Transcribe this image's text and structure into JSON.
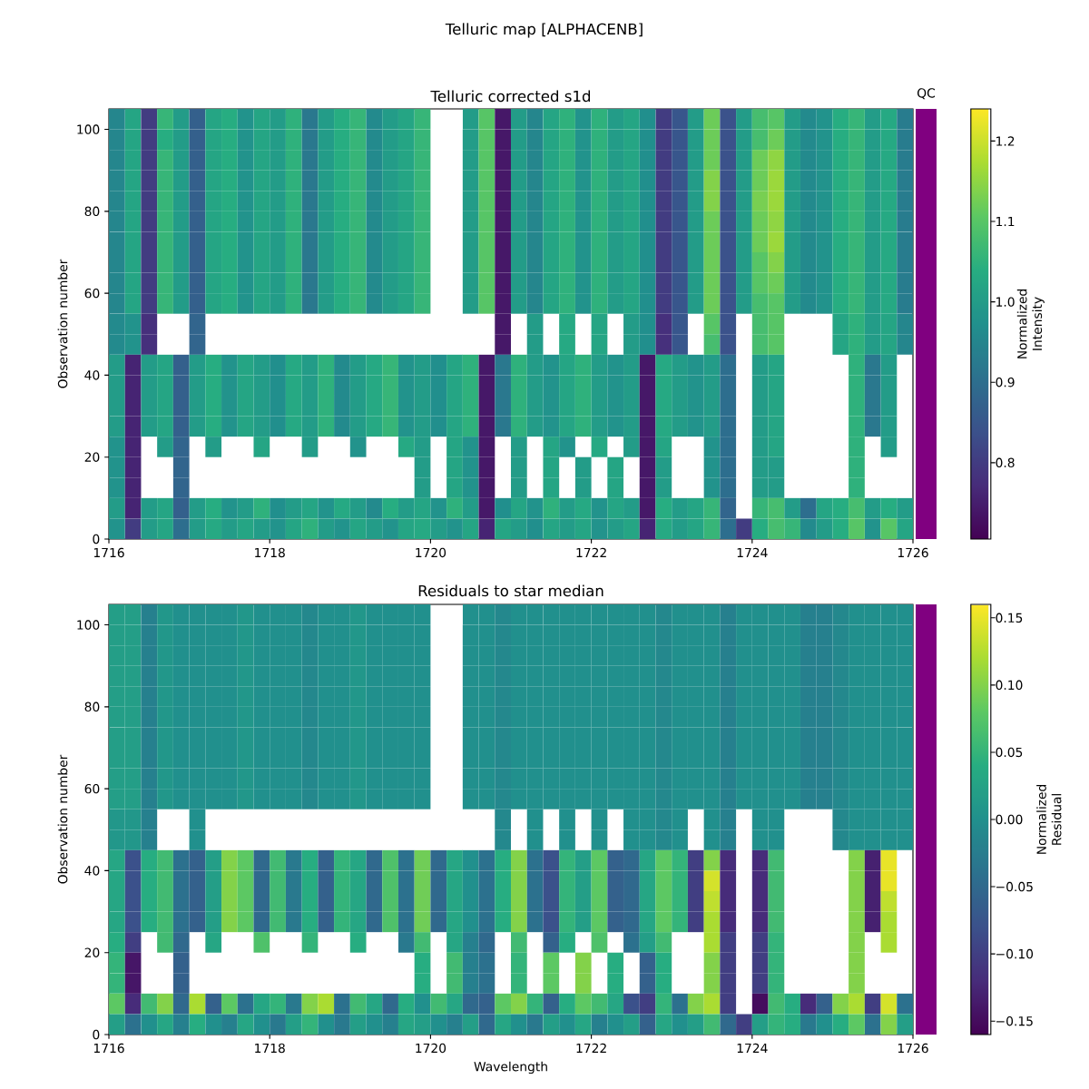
{
  "chart_data": [
    {
      "type": "other",
      "title": "Telluric map [ALPHACENB]"
    },
    {
      "type": "heatmap",
      "title": "Telluric corrected s1d",
      "ylabel": "Observation number",
      "clabel": "Normalized Intensity",
      "xlim": [
        1716,
        1726
      ],
      "xticks": [
        1716,
        1718,
        1720,
        1722,
        1724,
        1726
      ],
      "ylim": [
        0,
        105
      ],
      "yticks": [
        0,
        20,
        40,
        60,
        80,
        100
      ],
      "clim": [
        0.705,
        1.24
      ],
      "cticks": [
        0.8,
        0.9,
        {
          "value": 1.0,
          "label": "1.0"
        },
        1.1,
        1.2
      ],
      "cells": [
        [
          0.95,
          1.02,
          0.8,
          1.06,
          1.0,
          0.87,
          1.02,
          1.04,
          0.98,
          1.02,
          1.0,
          1.05,
          0.92,
          1.0,
          1.04,
          1.06,
          0.96,
          1.0,
          1.02,
          1.06,
          null,
          null,
          1.0,
          1.1,
          0.74,
          1.0,
          0.95,
          1.02,
          1.05,
          0.98,
          1.05,
          1.0,
          1.02,
          0.97,
          0.8,
          0.85,
          1.0,
          1.12,
          0.84,
          1.0,
          1.08,
          1.1,
          1.0,
          0.96,
          0.98,
          1.04,
          1.06,
          1.0,
          1.03,
          0.93
        ],
        [
          0.95,
          1.02,
          0.8,
          1.04,
          1.0,
          0.87,
          1.02,
          1.04,
          0.98,
          1.02,
          1.0,
          1.05,
          0.92,
          1.0,
          1.04,
          1.06,
          0.96,
          1.0,
          1.02,
          1.06,
          null,
          null,
          1.0,
          1.1,
          0.74,
          1.0,
          0.95,
          1.02,
          1.05,
          0.98,
          1.05,
          1.0,
          1.02,
          0.97,
          0.8,
          0.85,
          1.0,
          1.12,
          0.84,
          1.0,
          1.08,
          1.12,
          1.0,
          0.96,
          0.98,
          1.04,
          1.06,
          1.0,
          1.03,
          0.93
        ],
        [
          0.95,
          1.02,
          0.8,
          1.06,
          1.0,
          0.87,
          1.02,
          1.04,
          0.98,
          1.02,
          1.0,
          1.05,
          0.92,
          1.0,
          1.04,
          1.06,
          0.96,
          1.0,
          1.02,
          1.06,
          null,
          null,
          1.0,
          1.1,
          0.74,
          1.0,
          0.95,
          1.02,
          1.05,
          0.98,
          1.05,
          1.0,
          1.02,
          0.97,
          0.8,
          0.85,
          1.0,
          1.12,
          0.84,
          1.0,
          1.12,
          1.15,
          1.0,
          0.96,
          0.98,
          1.04,
          1.06,
          1.0,
          1.03,
          0.93
        ],
        [
          0.95,
          1.02,
          0.8,
          1.06,
          1.0,
          0.87,
          1.02,
          1.04,
          0.98,
          1.02,
          1.0,
          1.05,
          0.92,
          1.0,
          1.04,
          1.06,
          0.96,
          1.0,
          1.02,
          1.06,
          null,
          null,
          1.0,
          1.1,
          0.74,
          1.0,
          0.95,
          1.02,
          1.05,
          0.98,
          1.05,
          1.0,
          1.02,
          0.97,
          0.8,
          0.85,
          1.0,
          1.14,
          0.84,
          1.0,
          1.12,
          1.16,
          1.0,
          0.96,
          0.98,
          1.04,
          1.06,
          1.0,
          1.03,
          0.93
        ],
        [
          0.95,
          1.02,
          0.8,
          1.06,
          1.0,
          0.87,
          1.02,
          1.04,
          0.98,
          1.02,
          1.0,
          1.05,
          0.92,
          1.0,
          1.04,
          1.06,
          0.96,
          1.0,
          1.02,
          1.06,
          null,
          null,
          1.0,
          1.1,
          0.74,
          1.0,
          0.95,
          1.02,
          1.05,
          0.98,
          1.05,
          1.0,
          1.02,
          0.97,
          0.8,
          0.85,
          1.0,
          1.14,
          0.84,
          1.0,
          1.13,
          1.16,
          1.0,
          0.96,
          0.98,
          1.04,
          1.06,
          1.0,
          1.03,
          0.93
        ],
        [
          0.95,
          1.02,
          0.8,
          1.06,
          1.0,
          0.87,
          1.02,
          1.04,
          0.98,
          1.02,
          1.0,
          1.05,
          0.92,
          1.0,
          1.04,
          1.06,
          0.96,
          1.0,
          1.02,
          1.06,
          null,
          null,
          1.0,
          1.1,
          0.74,
          1.0,
          0.95,
          1.02,
          1.05,
          0.98,
          1.05,
          1.0,
          1.02,
          0.97,
          0.8,
          0.85,
          1.0,
          1.12,
          0.84,
          1.0,
          1.12,
          1.15,
          1.0,
          0.96,
          0.98,
          1.04,
          1.06,
          1.0,
          1.03,
          0.93
        ],
        [
          0.95,
          1.02,
          0.8,
          1.06,
          1.0,
          0.87,
          1.02,
          1.04,
          0.98,
          1.02,
          1.0,
          1.05,
          0.92,
          1.0,
          1.04,
          1.06,
          0.96,
          1.0,
          1.02,
          1.06,
          null,
          null,
          1.0,
          1.1,
          0.74,
          1.0,
          0.95,
          1.02,
          1.05,
          0.98,
          1.05,
          1.0,
          1.02,
          0.97,
          0.8,
          0.85,
          1.0,
          1.12,
          0.84,
          1.0,
          1.12,
          1.16,
          1.0,
          0.96,
          0.98,
          1.04,
          1.06,
          1.0,
          1.03,
          0.93
        ],
        [
          0.95,
          1.02,
          0.8,
          1.06,
          1.0,
          0.87,
          1.02,
          1.04,
          0.98,
          1.02,
          1.0,
          1.05,
          0.92,
          1.0,
          1.04,
          1.06,
          0.96,
          1.0,
          1.02,
          1.06,
          null,
          null,
          1.0,
          1.1,
          0.74,
          1.0,
          0.95,
          1.02,
          1.05,
          0.98,
          1.05,
          1.0,
          1.02,
          0.97,
          0.8,
          0.85,
          1.0,
          1.12,
          0.84,
          1.0,
          1.1,
          1.14,
          1.0,
          0.96,
          0.98,
          1.04,
          1.06,
          1.0,
          1.03,
          0.93
        ],
        [
          0.95,
          1.02,
          0.8,
          1.06,
          1.0,
          0.87,
          1.02,
          1.04,
          0.98,
          1.02,
          1.0,
          1.05,
          0.92,
          1.0,
          1.04,
          1.06,
          0.96,
          1.0,
          1.02,
          1.06,
          null,
          null,
          1.0,
          1.1,
          0.74,
          1.0,
          0.95,
          1.02,
          1.05,
          0.98,
          1.05,
          1.0,
          1.02,
          0.97,
          0.8,
          0.85,
          1.0,
          1.12,
          0.84,
          1.0,
          1.1,
          1.12,
          1.0,
          0.96,
          0.98,
          1.04,
          1.06,
          1.0,
          1.03,
          0.93
        ],
        [
          0.95,
          1.02,
          0.8,
          1.06,
          1.0,
          0.87,
          1.02,
          1.04,
          0.98,
          1.02,
          1.0,
          1.05,
          0.92,
          1.0,
          1.04,
          1.06,
          0.96,
          1.0,
          1.02,
          1.06,
          null,
          null,
          1.0,
          1.1,
          0.74,
          1.0,
          0.95,
          1.02,
          1.05,
          0.98,
          1.05,
          1.0,
          1.02,
          0.97,
          0.8,
          0.85,
          1.0,
          1.12,
          0.84,
          1.0,
          1.08,
          1.1,
          1.0,
          0.96,
          0.98,
          1.04,
          1.06,
          1.0,
          1.03,
          0.93
        ],
        [
          0.96,
          0.98,
          0.78,
          null,
          null,
          0.88,
          null,
          null,
          null,
          null,
          null,
          null,
          null,
          null,
          null,
          null,
          null,
          null,
          null,
          null,
          null,
          null,
          null,
          null,
          0.74,
          null,
          1.0,
          null,
          1.03,
          null,
          1.02,
          null,
          1.0,
          0.97,
          0.78,
          0.85,
          null,
          1.1,
          0.84,
          null,
          1.08,
          1.1,
          null,
          null,
          null,
          1.02,
          1.05,
          1.0,
          1.02,
          0.95
        ],
        [
          0.96,
          0.98,
          0.78,
          null,
          null,
          0.88,
          null,
          null,
          null,
          null,
          null,
          null,
          null,
          null,
          null,
          null,
          null,
          null,
          null,
          null,
          null,
          null,
          null,
          null,
          0.74,
          null,
          1.0,
          null,
          1.03,
          null,
          1.02,
          null,
          1.0,
          0.97,
          0.78,
          0.85,
          null,
          1.08,
          0.84,
          null,
          1.08,
          1.1,
          null,
          null,
          null,
          1.02,
          1.05,
          1.0,
          1.02,
          0.95
        ],
        [
          1.0,
          0.76,
          1.0,
          1.02,
          0.87,
          1.0,
          1.04,
          0.98,
          1.02,
          1.0,
          0.97,
          1.03,
          1.0,
          1.05,
          0.96,
          1.0,
          1.03,
          1.06,
          0.98,
          1.0,
          0.97,
          1.02,
          1.05,
          0.74,
          0.92,
          1.05,
          1.0,
          0.98,
          1.02,
          1.05,
          1.0,
          0.98,
          1.0,
          0.74,
          1.03,
          1.0,
          0.98,
          1.0,
          0.9,
          null,
          1.0,
          1.02,
          null,
          null,
          null,
          null,
          1.05,
          0.92,
          1.0,
          null
        ],
        [
          1.0,
          0.76,
          1.0,
          1.02,
          0.87,
          1.0,
          1.04,
          0.98,
          1.02,
          1.0,
          0.97,
          1.03,
          1.0,
          1.05,
          0.96,
          1.0,
          1.03,
          1.06,
          0.98,
          1.0,
          0.97,
          1.02,
          1.05,
          0.74,
          0.92,
          1.05,
          1.0,
          0.98,
          1.02,
          1.05,
          1.0,
          0.98,
          1.0,
          0.74,
          1.03,
          1.0,
          0.98,
          1.0,
          0.9,
          null,
          1.0,
          1.02,
          null,
          null,
          null,
          null,
          1.05,
          0.92,
          1.0,
          null
        ],
        [
          1.0,
          0.76,
          1.0,
          1.02,
          0.87,
          1.0,
          1.04,
          0.98,
          1.02,
          1.0,
          0.97,
          1.03,
          1.0,
          1.05,
          0.96,
          1.0,
          1.03,
          1.06,
          0.98,
          1.0,
          0.97,
          1.02,
          1.05,
          0.74,
          0.92,
          1.05,
          1.0,
          0.98,
          1.02,
          1.05,
          1.0,
          0.98,
          1.0,
          0.74,
          1.03,
          1.0,
          0.98,
          1.0,
          0.9,
          null,
          1.0,
          1.02,
          null,
          null,
          null,
          null,
          1.05,
          0.92,
          1.0,
          null
        ],
        [
          1.0,
          0.76,
          1.0,
          1.02,
          0.87,
          1.0,
          1.04,
          0.98,
          1.02,
          1.0,
          0.97,
          1.03,
          1.0,
          1.05,
          0.96,
          1.0,
          1.03,
          1.06,
          0.98,
          1.0,
          0.97,
          1.02,
          1.05,
          0.74,
          0.92,
          1.05,
          1.0,
          0.98,
          1.02,
          1.05,
          1.0,
          0.98,
          1.0,
          0.74,
          1.03,
          1.0,
          0.98,
          1.0,
          0.9,
          null,
          1.0,
          1.02,
          null,
          null,
          null,
          null,
          1.05,
          0.92,
          1.0,
          null
        ],
        [
          0.98,
          0.76,
          null,
          1.0,
          0.88,
          null,
          1.0,
          null,
          null,
          1.02,
          null,
          null,
          1.0,
          null,
          null,
          0.98,
          null,
          null,
          1.03,
          1.0,
          null,
          1.02,
          0.98,
          0.74,
          null,
          1.0,
          null,
          1.02,
          0.98,
          null,
          1.03,
          null,
          1.0,
          0.74,
          1.02,
          null,
          null,
          0.98,
          0.9,
          null,
          1.0,
          1.02,
          null,
          null,
          null,
          null,
          1.05,
          null,
          1.0,
          null
        ],
        [
          0.98,
          0.76,
          null,
          null,
          0.88,
          null,
          null,
          null,
          null,
          null,
          null,
          null,
          null,
          null,
          null,
          null,
          null,
          null,
          null,
          1.0,
          null,
          1.02,
          0.98,
          0.74,
          null,
          1.0,
          null,
          1.02,
          null,
          1.0,
          null,
          1.02,
          null,
          0.74,
          1.0,
          null,
          null,
          0.98,
          0.9,
          null,
          1.0,
          1.0,
          null,
          null,
          null,
          null,
          1.05,
          null,
          null,
          null
        ],
        [
          0.98,
          0.76,
          null,
          null,
          0.88,
          null,
          null,
          null,
          null,
          null,
          null,
          null,
          null,
          null,
          null,
          null,
          null,
          null,
          null,
          1.0,
          null,
          1.02,
          0.98,
          0.74,
          null,
          1.0,
          null,
          1.02,
          null,
          1.0,
          null,
          1.02,
          null,
          0.74,
          1.0,
          null,
          null,
          0.98,
          0.9,
          null,
          1.0,
          1.0,
          null,
          null,
          null,
          null,
          1.05,
          null,
          null,
          null
        ],
        [
          1.0,
          0.76,
          1.0,
          1.02,
          0.87,
          1.0,
          1.04,
          0.98,
          1.0,
          1.05,
          0.97,
          1.0,
          1.02,
          0.98,
          1.03,
          1.0,
          0.96,
          1.04,
          1.0,
          1.02,
          0.98,
          1.05,
          1.0,
          0.74,
          0.97,
          1.02,
          0.98,
          1.05,
          1.0,
          1.03,
          0.98,
          1.02,
          1.0,
          0.74,
          1.04,
          1.0,
          1.02,
          1.06,
          0.88,
          null,
          1.06,
          1.08,
          1.0,
          0.9,
          1.02,
          1.04,
          1.08,
          1.0,
          1.04,
          1.0
        ],
        [
          0.98,
          0.8,
          1.0,
          1.02,
          0.9,
          1.0,
          1.03,
          1.0,
          1.02,
          1.0,
          0.98,
          1.02,
          1.05,
          1.0,
          0.98,
          1.02,
          1.0,
          0.98,
          1.02,
          1.03,
          1.0,
          0.98,
          1.02,
          0.76,
          1.02,
          1.0,
          0.97,
          1.02,
          1.0,
          1.02,
          0.98,
          1.0,
          1.02,
          0.76,
          1.03,
          1.0,
          1.02,
          1.06,
          0.9,
          0.8,
          1.04,
          1.08,
          1.06,
          0.96,
          1.0,
          1.04,
          1.1,
          0.98,
          1.1,
          1.02
        ]
      ]
    },
    {
      "type": "other",
      "title": "QC",
      "color": "#800080"
    },
    {
      "type": "heatmap",
      "title": "Residuals to star median",
      "xlabel": "Wavelength",
      "ylabel": "Observation number",
      "clabel": "Normalized Residual",
      "xlim": [
        1716,
        1726
      ],
      "xticks": [
        1716,
        1718,
        1720,
        1722,
        1724,
        1726
      ],
      "ylim": [
        0,
        105
      ],
      "yticks": [
        0,
        20,
        40,
        60,
        80,
        100
      ],
      "clim": [
        -0.16,
        0.16
      ],
      "cticks": [
        {
          "value": -0.15,
          "label": "−0.15"
        },
        {
          "value": -0.1,
          "label": "−0.10"
        },
        {
          "value": -0.05,
          "label": "−0.05"
        },
        {
          "value": 0.0,
          "label": "0.00"
        },
        0.05,
        {
          "value": 0.1,
          "label": "0.10"
        },
        0.15
      ],
      "cells": [
        [
          0.02,
          0.02,
          -0.02,
          0.01,
          0.0,
          0.0,
          0.0,
          0.0,
          0.01,
          0.0,
          0.0,
          0.0,
          -0.01,
          0.0,
          0.0,
          0.01,
          0.0,
          0.0,
          0.0,
          0.0,
          null,
          null,
          0.0,
          0.0,
          -0.01,
          0.0,
          0.0,
          0.0,
          0.0,
          0.0,
          0.0,
          0.0,
          0.0,
          0.0,
          -0.01,
          0.0,
          0.0,
          0.0,
          -0.02,
          0.0,
          0.0,
          0.0,
          0.0,
          -0.02,
          -0.02,
          -0.01,
          0.0,
          0.0,
          0.0,
          0.0
        ],
        [
          0.02,
          0.02,
          -0.02,
          0.01,
          0.0,
          0.0,
          0.0,
          0.0,
          0.01,
          0.0,
          0.0,
          0.0,
          -0.01,
          0.0,
          0.0,
          0.01,
          0.0,
          0.0,
          0.0,
          0.0,
          null,
          null,
          0.0,
          0.0,
          -0.01,
          0.0,
          0.0,
          0.0,
          0.0,
          0.0,
          0.0,
          0.0,
          0.0,
          0.0,
          -0.01,
          0.0,
          0.0,
          0.0,
          -0.02,
          0.0,
          0.0,
          0.0,
          0.0,
          -0.02,
          -0.02,
          -0.01,
          0.0,
          0.0,
          0.0,
          0.0
        ],
        [
          0.02,
          0.02,
          -0.02,
          0.01,
          0.0,
          0.0,
          0.0,
          0.0,
          0.01,
          0.0,
          0.0,
          0.0,
          -0.01,
          0.0,
          0.0,
          0.01,
          0.0,
          0.0,
          0.0,
          0.0,
          null,
          null,
          0.0,
          0.0,
          -0.01,
          0.0,
          0.0,
          0.0,
          0.0,
          0.0,
          0.0,
          0.0,
          0.0,
          0.0,
          -0.01,
          0.0,
          0.0,
          0.0,
          -0.02,
          0.0,
          0.0,
          0.0,
          0.0,
          -0.02,
          -0.02,
          -0.01,
          0.0,
          0.0,
          0.0,
          0.0
        ],
        [
          0.02,
          0.02,
          -0.02,
          0.01,
          0.0,
          0.0,
          0.0,
          0.0,
          0.01,
          0.0,
          0.0,
          0.0,
          -0.01,
          0.0,
          0.0,
          0.01,
          0.0,
          0.0,
          0.0,
          0.0,
          null,
          null,
          0.0,
          0.0,
          -0.01,
          0.0,
          0.0,
          0.0,
          0.0,
          0.0,
          0.0,
          0.0,
          0.0,
          0.0,
          -0.01,
          0.0,
          0.0,
          0.0,
          -0.02,
          0.0,
          0.0,
          0.0,
          0.0,
          -0.02,
          -0.02,
          -0.01,
          0.0,
          0.0,
          0.0,
          0.0
        ],
        [
          0.02,
          0.02,
          -0.02,
          0.01,
          0.0,
          0.0,
          0.0,
          0.0,
          0.01,
          0.0,
          0.0,
          0.0,
          -0.01,
          0.0,
          0.0,
          0.01,
          0.0,
          0.0,
          0.0,
          0.0,
          null,
          null,
          0.0,
          0.0,
          -0.01,
          0.0,
          0.0,
          0.0,
          0.0,
          0.0,
          0.0,
          0.0,
          0.0,
          0.0,
          -0.01,
          0.0,
          0.0,
          0.0,
          -0.02,
          0.0,
          0.0,
          0.0,
          0.0,
          -0.02,
          -0.02,
          -0.01,
          0.0,
          0.0,
          0.0,
          0.0
        ],
        [
          0.02,
          0.02,
          -0.02,
          0.01,
          0.0,
          0.0,
          0.0,
          0.0,
          0.01,
          0.0,
          0.0,
          0.0,
          -0.01,
          0.0,
          0.0,
          0.01,
          0.0,
          0.0,
          0.0,
          0.0,
          null,
          null,
          0.0,
          0.0,
          -0.01,
          0.0,
          0.0,
          0.0,
          0.0,
          0.0,
          0.0,
          0.0,
          0.0,
          0.0,
          -0.01,
          0.0,
          0.0,
          0.0,
          -0.02,
          0.0,
          0.0,
          0.0,
          0.0,
          -0.02,
          -0.02,
          -0.01,
          0.0,
          0.0,
          0.0,
          0.0
        ],
        [
          0.02,
          0.02,
          -0.02,
          0.01,
          0.0,
          0.0,
          0.0,
          0.0,
          0.01,
          0.0,
          0.0,
          0.0,
          -0.01,
          0.0,
          0.0,
          0.01,
          0.0,
          0.0,
          0.0,
          0.0,
          null,
          null,
          0.0,
          0.0,
          -0.01,
          0.0,
          0.0,
          0.0,
          0.0,
          0.0,
          0.0,
          0.0,
          0.0,
          0.0,
          -0.01,
          0.0,
          0.0,
          0.0,
          -0.02,
          0.0,
          0.0,
          0.0,
          0.0,
          -0.02,
          -0.02,
          -0.01,
          0.0,
          0.0,
          0.0,
          0.0
        ],
        [
          0.02,
          0.02,
          -0.02,
          0.01,
          0.0,
          0.0,
          0.0,
          0.0,
          0.01,
          0.0,
          0.0,
          0.0,
          -0.01,
          0.0,
          0.0,
          0.01,
          0.0,
          0.0,
          0.0,
          0.0,
          null,
          null,
          0.0,
          0.0,
          -0.01,
          0.0,
          0.0,
          0.0,
          0.0,
          0.0,
          0.0,
          0.0,
          0.0,
          0.0,
          -0.01,
          0.0,
          0.0,
          0.0,
          -0.02,
          0.0,
          0.0,
          0.0,
          0.0,
          -0.02,
          -0.02,
          -0.01,
          0.0,
          0.0,
          0.0,
          0.0
        ],
        [
          0.02,
          0.02,
          -0.02,
          0.01,
          0.0,
          0.0,
          0.0,
          0.0,
          0.01,
          0.0,
          0.0,
          0.0,
          -0.01,
          0.0,
          0.0,
          0.01,
          0.0,
          0.0,
          0.0,
          0.0,
          null,
          null,
          0.0,
          0.0,
          -0.01,
          0.0,
          0.0,
          0.0,
          0.0,
          0.0,
          0.0,
          0.0,
          0.0,
          0.0,
          -0.01,
          0.0,
          0.0,
          0.0,
          -0.02,
          0.0,
          0.0,
          0.0,
          0.0,
          -0.02,
          -0.02,
          -0.01,
          0.0,
          0.0,
          0.0,
          0.0
        ],
        [
          0.02,
          0.02,
          -0.02,
          0.01,
          0.0,
          0.0,
          0.0,
          0.0,
          0.01,
          0.0,
          0.0,
          0.0,
          -0.01,
          0.0,
          0.0,
          0.01,
          0.0,
          0.0,
          0.0,
          0.0,
          null,
          null,
          0.0,
          0.0,
          -0.01,
          0.0,
          0.0,
          0.0,
          0.0,
          0.0,
          0.0,
          0.0,
          0.0,
          0.0,
          -0.01,
          0.0,
          0.0,
          0.0,
          -0.02,
          0.0,
          0.0,
          0.0,
          0.0,
          -0.02,
          -0.02,
          -0.01,
          0.0,
          0.0,
          0.0,
          0.0
        ],
        [
          0.01,
          0.01,
          -0.02,
          null,
          null,
          0.0,
          null,
          null,
          null,
          null,
          null,
          null,
          null,
          null,
          null,
          null,
          null,
          null,
          null,
          null,
          null,
          null,
          null,
          null,
          -0.01,
          null,
          0.0,
          null,
          0.0,
          null,
          0.0,
          null,
          0.0,
          0.0,
          -0.01,
          0.0,
          null,
          0.0,
          -0.02,
          null,
          0.0,
          0.0,
          null,
          null,
          null,
          -0.01,
          0.0,
          0.0,
          0.0,
          0.0
        ],
        [
          0.01,
          0.01,
          -0.02,
          null,
          null,
          0.0,
          null,
          null,
          null,
          null,
          null,
          null,
          null,
          null,
          null,
          null,
          null,
          null,
          null,
          null,
          null,
          null,
          null,
          null,
          -0.01,
          null,
          0.0,
          null,
          0.0,
          null,
          0.0,
          null,
          0.0,
          0.0,
          -0.01,
          0.0,
          null,
          0.0,
          -0.02,
          null,
          0.0,
          0.0,
          null,
          null,
          null,
          -0.01,
          0.0,
          0.0,
          0.0,
          0.0
        ],
        [
          0.03,
          -0.08,
          0.04,
          0.06,
          -0.04,
          -0.06,
          0.02,
          0.1,
          0.08,
          -0.05,
          0.06,
          -0.03,
          0.04,
          -0.06,
          0.05,
          0.03,
          -0.05,
          0.07,
          -0.04,
          0.09,
          -0.05,
          0.03,
          0.0,
          -0.04,
          0.04,
          0.1,
          -0.04,
          -0.08,
          0.05,
          0.02,
          0.08,
          -0.06,
          -0.05,
          0.03,
          0.08,
          0.05,
          -0.1,
          0.1,
          -0.12,
          null,
          -0.12,
          0.06,
          null,
          null,
          null,
          null,
          0.1,
          -0.13,
          0.15,
          null
        ],
        [
          0.03,
          -0.08,
          0.04,
          0.06,
          -0.04,
          -0.06,
          0.02,
          0.1,
          0.08,
          -0.05,
          0.06,
          -0.03,
          0.04,
          -0.06,
          0.05,
          0.03,
          -0.05,
          0.07,
          -0.04,
          0.09,
          -0.05,
          0.03,
          0.0,
          -0.04,
          0.04,
          0.1,
          -0.04,
          -0.08,
          0.05,
          0.02,
          0.08,
          -0.06,
          -0.05,
          0.03,
          0.08,
          0.05,
          -0.1,
          0.14,
          -0.12,
          null,
          -0.12,
          0.06,
          null,
          null,
          null,
          null,
          0.1,
          -0.13,
          0.15,
          null
        ],
        [
          0.03,
          -0.08,
          0.04,
          0.06,
          -0.04,
          -0.06,
          0.02,
          0.1,
          0.08,
          -0.05,
          0.06,
          -0.03,
          0.04,
          -0.06,
          0.05,
          0.03,
          -0.05,
          0.07,
          -0.04,
          0.09,
          -0.05,
          0.03,
          0.0,
          -0.04,
          0.04,
          0.1,
          -0.04,
          -0.08,
          0.05,
          0.02,
          0.08,
          -0.06,
          -0.05,
          0.03,
          0.08,
          0.05,
          -0.1,
          0.13,
          -0.12,
          null,
          -0.12,
          0.06,
          null,
          null,
          null,
          null,
          0.1,
          -0.13,
          0.13,
          null
        ],
        [
          0.03,
          -0.08,
          0.04,
          0.06,
          -0.04,
          -0.06,
          0.02,
          0.1,
          0.08,
          -0.05,
          0.06,
          -0.03,
          0.04,
          -0.06,
          0.05,
          0.03,
          -0.05,
          0.07,
          -0.04,
          0.09,
          -0.05,
          0.03,
          0.0,
          -0.04,
          0.04,
          0.1,
          -0.04,
          -0.08,
          0.05,
          0.02,
          0.08,
          -0.06,
          -0.05,
          0.03,
          0.08,
          0.05,
          -0.1,
          0.12,
          -0.12,
          null,
          -0.12,
          0.06,
          null,
          null,
          null,
          null,
          0.1,
          -0.13,
          0.12,
          null
        ],
        [
          0.04,
          -0.1,
          null,
          0.06,
          -0.05,
          null,
          0.03,
          null,
          null,
          0.07,
          null,
          null,
          0.05,
          null,
          null,
          0.04,
          null,
          null,
          -0.03,
          0.06,
          null,
          0.03,
          -0.02,
          -0.05,
          null,
          0.06,
          null,
          -0.06,
          0.04,
          null,
          0.07,
          null,
          -0.04,
          0.02,
          0.06,
          null,
          null,
          0.12,
          -0.1,
          null,
          -0.1,
          0.05,
          null,
          null,
          null,
          null,
          0.1,
          null,
          0.12,
          null
        ],
        [
          0.05,
          -0.14,
          null,
          null,
          -0.06,
          null,
          null,
          null,
          null,
          null,
          null,
          null,
          null,
          null,
          null,
          null,
          null,
          null,
          null,
          0.04,
          null,
          0.06,
          -0.02,
          -0.04,
          null,
          0.05,
          null,
          0.08,
          null,
          0.1,
          null,
          0.04,
          null,
          -0.06,
          0.04,
          null,
          null,
          0.1,
          -0.1,
          null,
          -0.1,
          0.05,
          null,
          null,
          null,
          null,
          0.1,
          null,
          null,
          null
        ],
        [
          0.05,
          -0.14,
          null,
          null,
          -0.06,
          null,
          null,
          null,
          null,
          null,
          null,
          null,
          null,
          null,
          null,
          null,
          null,
          null,
          null,
          0.04,
          null,
          0.06,
          -0.02,
          -0.04,
          null,
          0.05,
          null,
          0.08,
          null,
          0.1,
          null,
          0.04,
          null,
          -0.06,
          0.04,
          null,
          null,
          0.1,
          -0.1,
          null,
          -0.1,
          0.05,
          null,
          null,
          null,
          null,
          0.1,
          null,
          null,
          null
        ],
        [
          0.08,
          -0.12,
          0.06,
          0.1,
          -0.05,
          0.12,
          -0.06,
          0.08,
          -0.04,
          0.03,
          0.05,
          -0.03,
          0.1,
          0.12,
          -0.04,
          0.06,
          0.03,
          -0.05,
          0.04,
          0.0,
          0.06,
          0.03,
          -0.05,
          -0.06,
          0.08,
          0.1,
          0.05,
          -0.06,
          0.04,
          0.08,
          0.06,
          0.03,
          -0.08,
          -0.1,
          0.05,
          -0.04,
          0.1,
          0.12,
          -0.1,
          null,
          -0.15,
          0.06,
          0.04,
          -0.12,
          -0.06,
          0.1,
          0.12,
          -0.1,
          0.14,
          -0.04
        ],
        [
          0.02,
          -0.04,
          0.0,
          0.03,
          -0.02,
          0.04,
          0.0,
          -0.02,
          0.03,
          0.0,
          -0.03,
          0.02,
          0.05,
          0.0,
          -0.03,
          0.02,
          0.0,
          -0.02,
          0.03,
          0.02,
          0.0,
          -0.02,
          0.02,
          -0.05,
          0.03,
          0.0,
          -0.03,
          0.02,
          0.0,
          0.03,
          -0.02,
          0.0,
          0.02,
          -0.06,
          0.03,
          0.0,
          0.02,
          0.06,
          -0.05,
          -0.1,
          0.02,
          0.05,
          0.04,
          -0.03,
          0.0,
          0.04,
          0.08,
          -0.04,
          0.1,
          0.02
        ]
      ]
    },
    {
      "type": "other",
      "color": "#800080"
    }
  ]
}
